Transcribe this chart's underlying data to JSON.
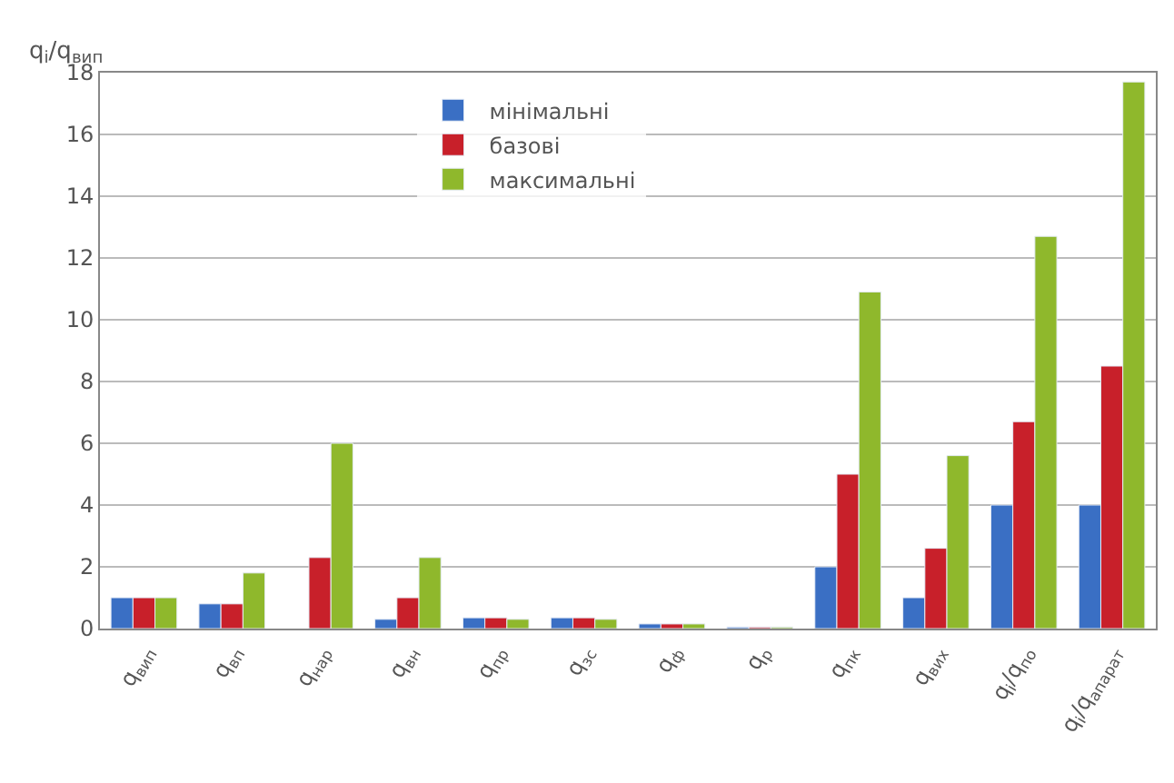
{
  "chart_data": {
    "type": "bar",
    "ylabel": "q$_{i}$/q$_{вип}$",
    "categories": [
      "q$_{вип}$",
      "q$_{вп}$",
      "q$_{нар}$",
      "q$_{вн}$",
      "q$_{пр}$",
      "q$_{зс}$",
      "q$_{ф}$",
      "q$_{р}$",
      "q$_{пк}$",
      "q$_{вих}$",
      "q$_{i}$/q$_{по}$",
      "q$_{i}$/q$_{апарат}$"
    ],
    "series": [
      {
        "name": "мінімальні",
        "color": "#3a6fc4",
        "values": [
          1,
          0.8,
          null,
          0.3,
          0.35,
          0.35,
          0.15,
          0.05,
          2,
          1,
          4,
          4
        ]
      },
      {
        "name": "базові",
        "color": "#c8202a",
        "values": [
          1,
          0.8,
          2.3,
          1.0,
          0.35,
          0.35,
          0.15,
          0.05,
          5,
          2.6,
          6.7,
          8.5
        ]
      },
      {
        "name": "максимальні",
        "color": "#8fb82c",
        "values": [
          1,
          1.8,
          6,
          2.3,
          0.3,
          0.3,
          0.15,
          0.05,
          10.9,
          5.6,
          12.7,
          17.7
        ]
      }
    ],
    "ylim": [
      0,
      18
    ],
    "yticks": [
      0,
      2,
      4,
      6,
      8,
      10,
      12,
      14,
      16,
      18
    ],
    "grid": "y",
    "legend": "top"
  }
}
